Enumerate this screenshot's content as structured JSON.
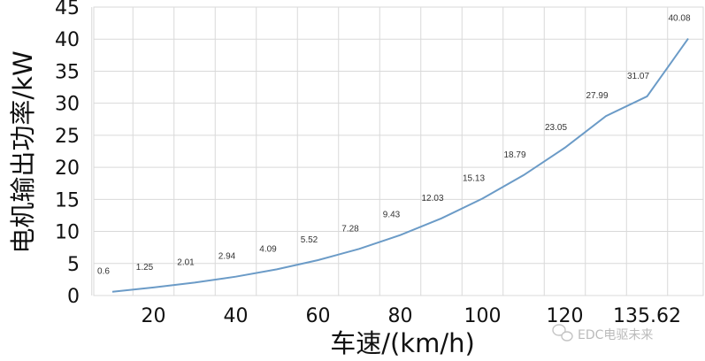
{
  "chart_data": {
    "type": "line",
    "title": "",
    "xlabel": "车速/(km/h)",
    "ylabel": "电机输出功率/kW",
    "x_ticks": [
      "20",
      "40",
      "60",
      "80",
      "100",
      "120",
      "135.62"
    ],
    "y_ticks": [
      "0",
      "5",
      "10",
      "15",
      "20",
      "25",
      "30",
      "35",
      "40",
      "45"
    ],
    "xlim": [
      0,
      145
    ],
    "ylim": [
      0,
      45
    ],
    "grid": true,
    "line_color": "#6b9bc7",
    "series": [
      {
        "x": [
          10,
          20,
          30,
          40,
          50,
          60,
          70,
          80,
          90,
          100,
          110,
          120,
          130,
          140,
          150
        ],
        "values": [
          0.6,
          1.25,
          2.01,
          2.94,
          4.09,
          5.52,
          7.28,
          9.43,
          12.03,
          15.13,
          18.79,
          23.05,
          27.99,
          31.07,
          40.08
        ],
        "labels": [
          "0.6",
          "1.25",
          "2.01",
          "2.94",
          "4.09",
          "5.52",
          "7.28",
          "9.43",
          "12.03",
          "15.13",
          "18.79",
          "23.05",
          "27.99",
          "31.07",
          "40.08"
        ]
      }
    ]
  },
  "watermark": {
    "text": "EDC电驱未来",
    "icon": "wechat-icon"
  }
}
